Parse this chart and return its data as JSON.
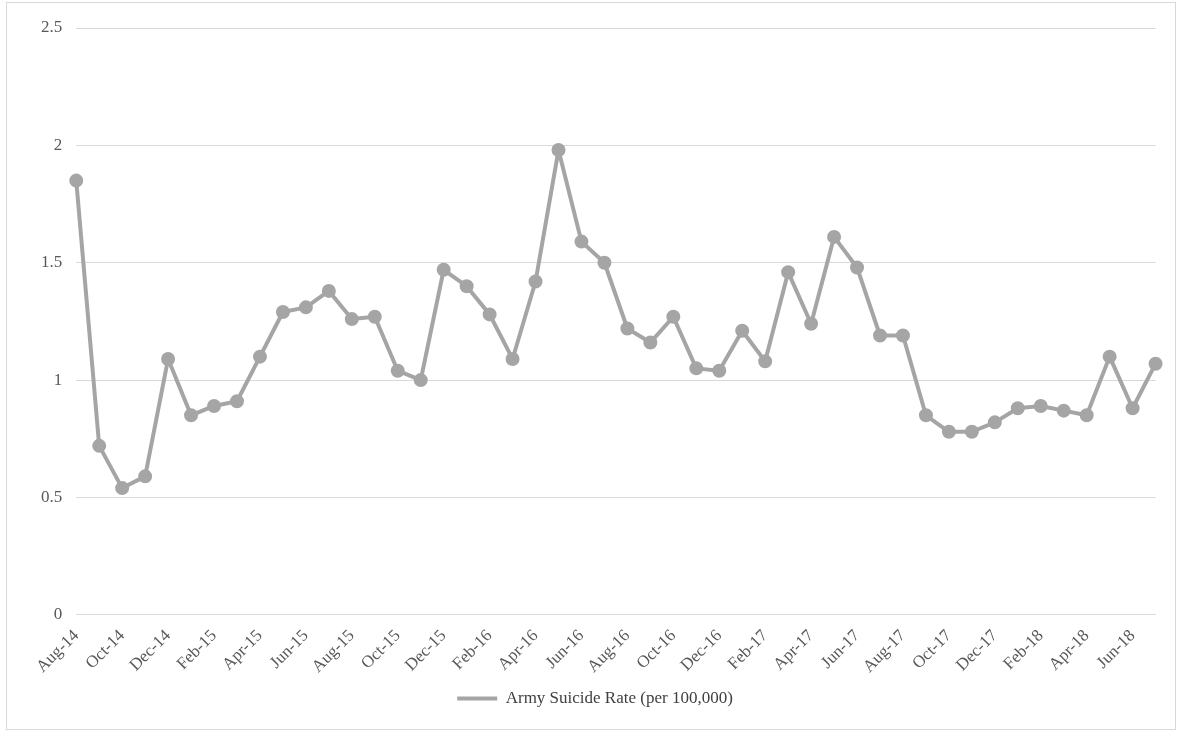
{
  "chart_data": {
    "type": "line",
    "categories": [
      "Aug-14",
      null,
      "Oct-14",
      null,
      "Dec-14",
      null,
      "Feb-15",
      null,
      "Apr-15",
      null,
      "Jun-15",
      null,
      "Aug-15",
      null,
      "Oct-15",
      null,
      "Dec-15",
      null,
      "Feb-16",
      null,
      "Apr-16",
      null,
      "Jun-16",
      null,
      "Aug-16",
      null,
      "Oct-16",
      null,
      "Dec-16",
      null,
      "Feb-17",
      null,
      "Apr-17",
      null,
      "Jun-17",
      null,
      "Aug-17",
      null,
      "Oct-17",
      null,
      "Dec-17",
      null,
      "Feb-18",
      null,
      "Apr-18",
      null,
      "Jun-18",
      null
    ],
    "series": [
      {
        "name": "Army Suicide Rate (per 100,000)",
        "color": "#a5a5a5",
        "values": [
          1.85,
          0.72,
          0.54,
          0.59,
          1.09,
          0.85,
          0.89,
          0.91,
          1.1,
          1.29,
          1.31,
          1.38,
          1.26,
          1.27,
          1.04,
          1.0,
          1.47,
          1.4,
          1.28,
          1.09,
          1.42,
          1.98,
          1.59,
          1.5,
          1.22,
          1.16,
          1.27,
          1.05,
          1.04,
          1.21,
          1.08,
          1.46,
          1.24,
          1.61,
          1.48,
          1.19,
          1.19,
          0.85,
          0.78,
          0.78,
          0.82,
          0.88,
          0.89,
          0.87,
          0.85,
          1.1,
          0.88,
          1.07
        ]
      }
    ],
    "ylim": [
      0,
      2.5
    ],
    "yticks": [
      0,
      0.5,
      1,
      1.5,
      2,
      2.5
    ],
    "grid": "y",
    "legend": "bottom",
    "marker": "circle",
    "line_style": "solid"
  }
}
